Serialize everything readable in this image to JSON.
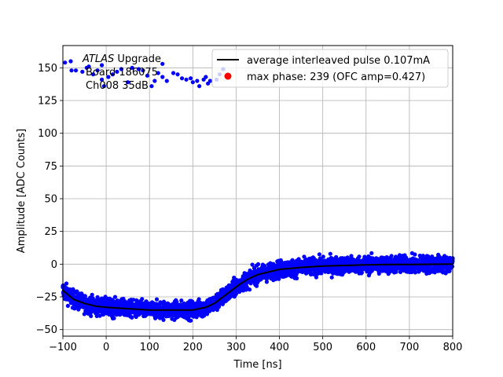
{
  "chart_data": {
    "type": "scatter",
    "xlabel": "Time [ns]",
    "ylabel": "Amplitude [ADC Counts]",
    "xlim": [
      -100,
      800
    ],
    "ylim": [
      -55,
      167
    ],
    "xticks": [
      -100,
      0,
      100,
      200,
      300,
      400,
      500,
      600,
      700,
      800
    ],
    "yticks": [
      -50,
      -25,
      0,
      25,
      50,
      75,
      100,
      125,
      150
    ],
    "grid": true,
    "legend_position": "top-right",
    "annotation": {
      "line1_italic": "ATLAS",
      "line1_rest": " Upgrade",
      "line2": "Board 186075",
      "line3": "Ch008 35dB"
    },
    "series": [
      {
        "name": "average interleaved pulse 0.107mA",
        "kind": "line",
        "color": "#000000",
        "points": [
          [
            -100,
            -20
          ],
          [
            -75,
            -27
          ],
          [
            -50,
            -30
          ],
          [
            -25,
            -32
          ],
          [
            0,
            -33
          ],
          [
            50,
            -34
          ],
          [
            100,
            -35
          ],
          [
            150,
            -35
          ],
          [
            200,
            -35
          ],
          [
            230,
            -33
          ],
          [
            250,
            -30
          ],
          [
            270,
            -25
          ],
          [
            290,
            -20
          ],
          [
            310,
            -15
          ],
          [
            330,
            -11
          ],
          [
            350,
            -8
          ],
          [
            375,
            -6
          ],
          [
            400,
            -4
          ],
          [
            450,
            -2.5
          ],
          [
            500,
            -1.5
          ],
          [
            550,
            -1
          ],
          [
            600,
            -0.5
          ],
          [
            650,
            -0.3
          ],
          [
            700,
            -0.2
          ],
          [
            750,
            -0.1
          ],
          [
            800,
            0
          ]
        ]
      },
      {
        "name": "max phase: 239 (OFC amp=0.427)",
        "kind": "scatter",
        "color": "#ff0000",
        "points": []
      },
      {
        "name": "",
        "kind": "scatter-band",
        "color": "#0000ff",
        "noise": 6
      },
      {
        "name": "",
        "kind": "scatter",
        "color": "#0000ff",
        "points": [
          [
            -80,
            148
          ],
          [
            -70,
            148
          ],
          [
            -55,
            147
          ],
          [
            -45,
            150
          ],
          [
            -30,
            145
          ],
          [
            -20,
            148
          ],
          [
            -10,
            141
          ],
          [
            -5,
            136
          ],
          [
            5,
            143
          ],
          [
            15,
            145
          ],
          [
            25,
            147
          ],
          [
            35,
            149
          ],
          [
            50,
            139
          ],
          [
            60,
            150
          ],
          [
            75,
            149
          ],
          [
            85,
            148
          ],
          [
            95,
            144
          ],
          [
            105,
            136
          ],
          [
            112,
            140
          ],
          [
            120,
            146
          ],
          [
            130,
            143
          ],
          [
            140,
            140
          ],
          [
            155,
            146
          ],
          [
            165,
            145
          ],
          [
            175,
            142
          ],
          [
            185,
            141
          ],
          [
            195,
            142
          ],
          [
            200,
            139
          ],
          [
            210,
            140
          ],
          [
            215,
            136
          ],
          [
            225,
            141
          ],
          [
            230,
            143
          ],
          [
            235,
            138
          ],
          [
            240,
            140
          ],
          [
            255,
            141
          ],
          [
            262,
            145
          ],
          [
            270,
            149
          ],
          [
            -10,
            152
          ],
          [
            -40,
            151
          ],
          [
            130,
            153
          ],
          [
            -95,
            154
          ]
        ]
      }
    ]
  }
}
